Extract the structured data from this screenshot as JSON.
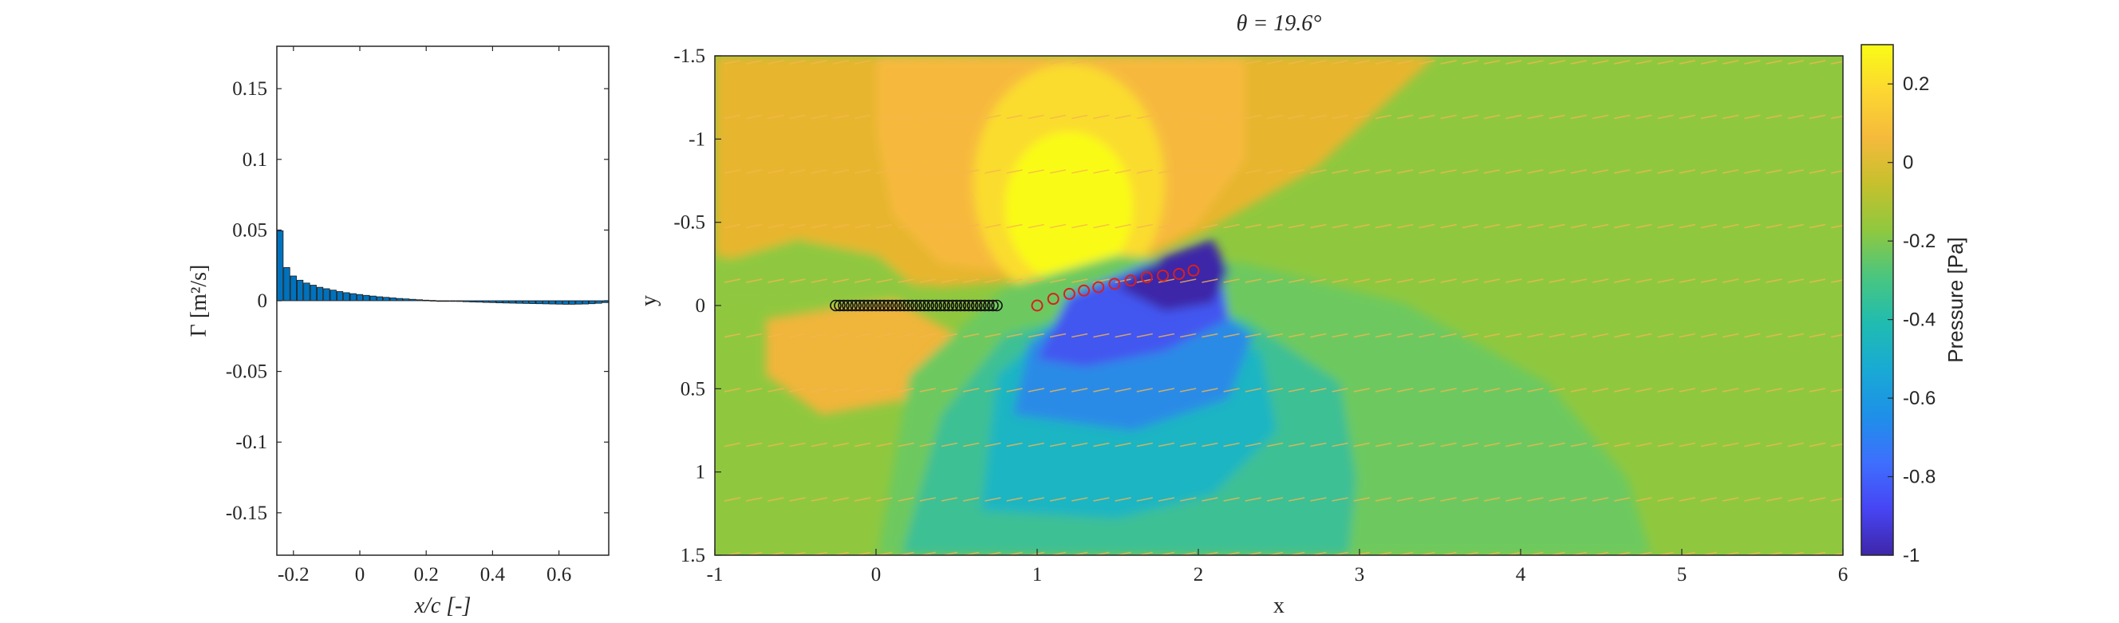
{
  "chart_data": [
    {
      "type": "bar",
      "xlabel": "x/c [-]",
      "ylabel": "Γ [m²/s]",
      "xlim": [
        -0.25,
        0.75
      ],
      "ylim": [
        -0.18,
        0.18
      ],
      "x_ticks": [
        "-0.2",
        "0",
        "0.2",
        "0.4",
        "0.6"
      ],
      "y_ticks": [
        "0.15",
        "0.1",
        "0.05",
        "0",
        "-0.05",
        "-0.1",
        "-0.15"
      ],
      "bar_color": "#0072BD",
      "x": [
        -0.24,
        -0.22,
        -0.2,
        -0.18,
        -0.16,
        -0.14,
        -0.12,
        -0.1,
        -0.08,
        -0.06,
        -0.04,
        -0.02,
        0,
        0.02,
        0.04,
        0.06,
        0.08,
        0.1,
        0.12,
        0.14,
        0.16,
        0.18,
        0.2,
        0.22,
        0.24,
        0.26,
        0.28,
        0.3,
        0.32,
        0.34,
        0.36,
        0.38,
        0.4,
        0.42,
        0.44,
        0.46,
        0.48,
        0.5,
        0.52,
        0.54,
        0.56,
        0.58,
        0.6,
        0.62,
        0.64,
        0.66,
        0.68,
        0.7,
        0.72,
        0.74
      ],
      "values": [
        0.0495,
        0.0235,
        0.0175,
        0.0145,
        0.0125,
        0.011,
        0.0095,
        0.0085,
        0.0075,
        0.0065,
        0.0057,
        0.005,
        0.0044,
        0.0038,
        0.0033,
        0.0028,
        0.0024,
        0.002,
        0.0016,
        0.0013,
        0.001,
        0.0007,
        0.0004,
        0.0002,
        0.0,
        -0.0002,
        -0.0004,
        -0.0005,
        -0.0007,
        -0.0009,
        -0.001,
        -0.0012,
        -0.0013,
        -0.0015,
        -0.0016,
        -0.0017,
        -0.0018,
        -0.0019,
        -0.002,
        -0.0021,
        -0.0022,
        -0.0023,
        -0.0024,
        -0.0025,
        -0.0025,
        -0.0024,
        -0.0023,
        -0.0021,
        -0.0018,
        -0.0013
      ]
    },
    {
      "type": "heatmap",
      "title": "θ = 19.6°",
      "xlabel": "x",
      "ylabel": "y",
      "xlim": [
        -1,
        6
      ],
      "ylim": [
        -1.5,
        1.5
      ],
      "y_reversed": true,
      "x_ticks": [
        "-1",
        "0",
        "1",
        "2",
        "3",
        "4",
        "5",
        "6"
      ],
      "y_ticks": [
        "-1.5",
        "-1",
        "-0.5",
        "0",
        "0.5",
        "1",
        "1.5"
      ],
      "colorbar": {
        "label": "Pressure [Pa]",
        "range": [
          -1,
          0.3
        ],
        "ticks": [
          "0.2",
          "0",
          "-0.2",
          "-0.4",
          "-0.6",
          "-0.8",
          "-1"
        ],
        "colormap": [
          "#3e26a8",
          "#4745f4",
          "#3e6ffe",
          "#1e90e8",
          "#19aad4",
          "#20bcb0",
          "#4ac67f",
          "#8fc83f",
          "#c6c02d",
          "#f5ba3c",
          "#fcd731",
          "#f9fb15"
        ]
      },
      "plate_points_black": {
        "x": [
          -0.25,
          -0.225,
          -0.2,
          -0.175,
          -0.15,
          -0.125,
          -0.1,
          -0.075,
          -0.05,
          -0.025,
          0,
          0.025,
          0.05,
          0.075,
          0.1,
          0.125,
          0.15,
          0.175,
          0.2,
          0.225,
          0.25,
          0.275,
          0.3,
          0.325,
          0.35,
          0.375,
          0.4,
          0.425,
          0.45,
          0.475,
          0.5,
          0.525,
          0.55,
          0.575,
          0.6,
          0.625,
          0.65,
          0.675,
          0.7,
          0.725,
          0.75
        ],
        "y": [
          0,
          0,
          0,
          0,
          0,
          0,
          0,
          0,
          0,
          0,
          0,
          0,
          0,
          0,
          0,
          0,
          0,
          0,
          0,
          0,
          0,
          0,
          0,
          0,
          0,
          0,
          0,
          0,
          0,
          0,
          0,
          0,
          0,
          0,
          0,
          0,
          0,
          0,
          0,
          0,
          0
        ]
      },
      "wake_points_red": {
        "x": [
          1.0,
          1.1,
          1.2,
          1.29,
          1.38,
          1.48,
          1.58,
          1.68,
          1.78,
          1.88,
          1.97
        ],
        "y": [
          0.0,
          -0.04,
          -0.07,
          -0.09,
          -0.11,
          -0.13,
          -0.15,
          -0.17,
          -0.18,
          -0.19,
          -0.21
        ]
      }
    }
  ]
}
